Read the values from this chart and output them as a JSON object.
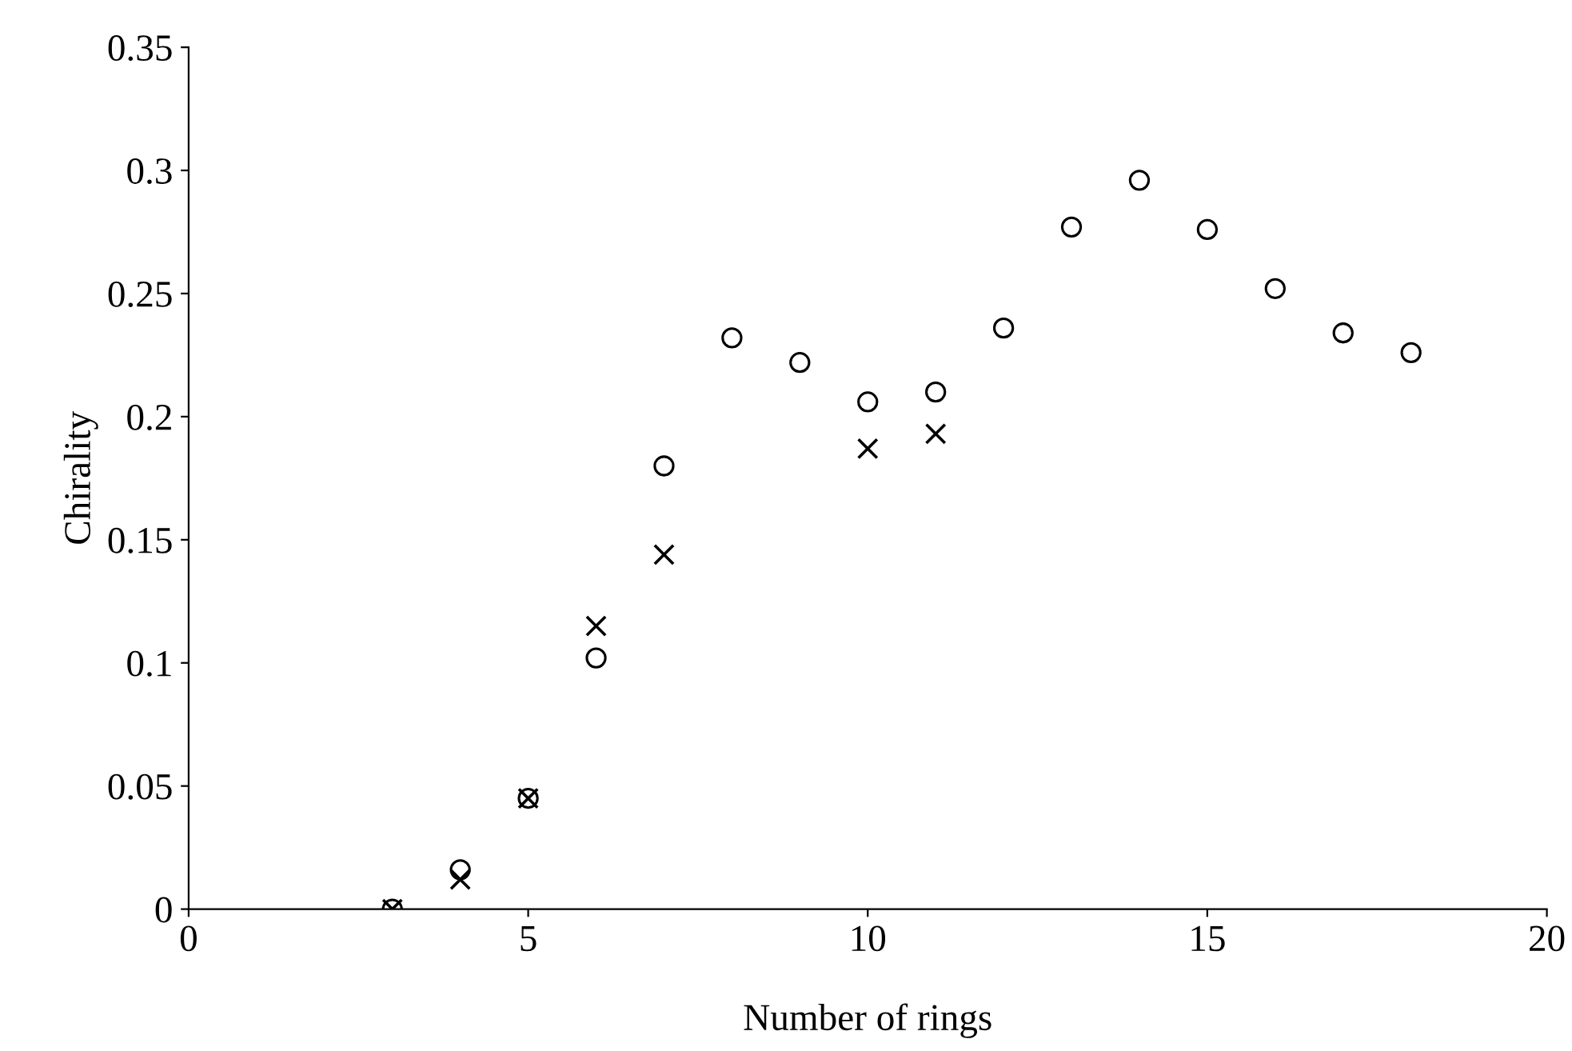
{
  "chart_data": {
    "type": "scatter",
    "xlabel": "Number of rings",
    "ylabel": "Chirality",
    "xlim": [
      0,
      20
    ],
    "xticks": [
      0,
      5,
      10,
      15,
      20
    ],
    "ylim": [
      0,
      0.35
    ],
    "yticks": [
      0,
      0.05,
      0.1,
      0.15,
      0.2,
      0.25,
      0.3,
      0.35
    ],
    "grid": false,
    "series": [
      {
        "color": "#000000",
        "marker": "circle",
        "x": [
          3,
          4,
          5,
          6,
          7,
          8,
          9,
          10,
          11,
          12,
          13,
          14,
          15,
          16,
          17,
          18
        ],
        "values": [
          0,
          0.016,
          0.045,
          0.102,
          0.18,
          0.232,
          0.222,
          0.206,
          0.21,
          0.236,
          0.277,
          0.296,
          0.276,
          0.252,
          0.234,
          0.226
        ]
      },
      {
        "color": "#000000",
        "marker": "cross",
        "x": [
          3,
          4,
          5,
          6,
          7,
          10,
          11
        ],
        "values": [
          0,
          0.012,
          0.045,
          0.115,
          0.144,
          0.187,
          0.193
        ]
      }
    ]
  }
}
